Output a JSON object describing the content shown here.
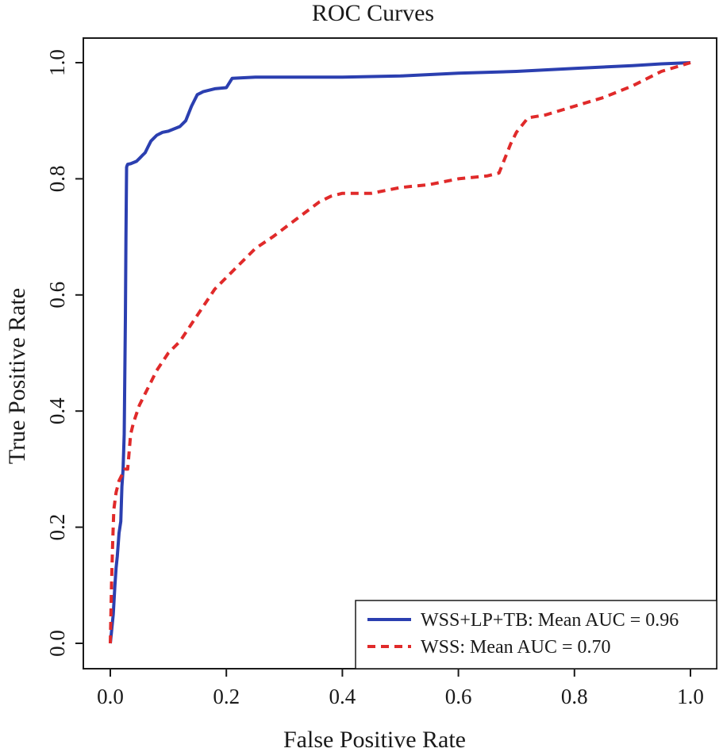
{
  "chart_data": {
    "type": "line",
    "title": "ROC Curves",
    "xlabel": "False Positive Rate",
    "ylabel": "True Positive Rate",
    "xlim": [
      0,
      1
    ],
    "ylim": [
      0,
      1
    ],
    "x_ticks": [
      0,
      0.2,
      0.4,
      0.6,
      0.8,
      1.0
    ],
    "y_ticks": [
      0,
      0.2,
      0.4,
      0.6,
      0.8,
      1.0
    ],
    "x_tick_labels": [
      "0.0",
      "0.2",
      "0.4",
      "0.6",
      "0.8",
      "1.0"
    ],
    "y_tick_labels": [
      "0.0",
      "0.2",
      "0.4",
      "0.6",
      "0.8",
      "1.0"
    ],
    "grid": false,
    "legend_position": "bottom-right",
    "series": [
      {
        "name": "WSS+LP+TB: Mean AUC = 0.96",
        "color": "#2b3fb0",
        "style": "solid",
        "x": [
          0.0,
          0.002,
          0.005,
          0.008,
          0.01,
          0.012,
          0.015,
          0.018,
          0.02,
          0.022,
          0.024,
          0.026,
          0.027,
          0.028,
          0.029,
          0.03,
          0.035,
          0.045,
          0.05,
          0.055,
          0.06,
          0.065,
          0.07,
          0.075,
          0.08,
          0.09,
          0.1,
          0.12,
          0.13,
          0.14,
          0.15,
          0.16,
          0.18,
          0.2,
          0.21,
          0.25,
          0.4,
          0.5,
          0.6,
          0.7,
          0.8,
          0.9,
          0.95,
          1.0
        ],
        "y": [
          0.0,
          0.02,
          0.05,
          0.1,
          0.13,
          0.15,
          0.19,
          0.21,
          0.27,
          0.3,
          0.36,
          0.56,
          0.7,
          0.82,
          0.823,
          0.825,
          0.826,
          0.83,
          0.835,
          0.84,
          0.845,
          0.855,
          0.865,
          0.87,
          0.875,
          0.88,
          0.882,
          0.89,
          0.9,
          0.925,
          0.945,
          0.95,
          0.955,
          0.957,
          0.973,
          0.975,
          0.975,
          0.977,
          0.982,
          0.985,
          0.99,
          0.995,
          0.998,
          1.0
        ]
      },
      {
        "name": "WSS: Mean AUC = 0.70",
        "color": "#e02a2a",
        "style": "dashed",
        "x": [
          0.0,
          0.002,
          0.004,
          0.006,
          0.01,
          0.015,
          0.02,
          0.025,
          0.03,
          0.035,
          0.04,
          0.05,
          0.06,
          0.07,
          0.08,
          0.1,
          0.12,
          0.14,
          0.16,
          0.18,
          0.2,
          0.22,
          0.25,
          0.28,
          0.32,
          0.36,
          0.38,
          0.4,
          0.45,
          0.5,
          0.55,
          0.6,
          0.65,
          0.67,
          0.69,
          0.7,
          0.72,
          0.75,
          0.8,
          0.85,
          0.9,
          0.95,
          1.0
        ],
        "y": [
          0.0,
          0.1,
          0.17,
          0.23,
          0.26,
          0.28,
          0.29,
          0.3,
          0.3,
          0.36,
          0.38,
          0.41,
          0.43,
          0.45,
          0.47,
          0.5,
          0.52,
          0.55,
          0.58,
          0.61,
          0.63,
          0.65,
          0.68,
          0.7,
          0.73,
          0.76,
          0.77,
          0.775,
          0.775,
          0.785,
          0.79,
          0.8,
          0.805,
          0.81,
          0.86,
          0.88,
          0.905,
          0.91,
          0.925,
          0.94,
          0.96,
          0.985,
          1.0
        ]
      }
    ]
  }
}
